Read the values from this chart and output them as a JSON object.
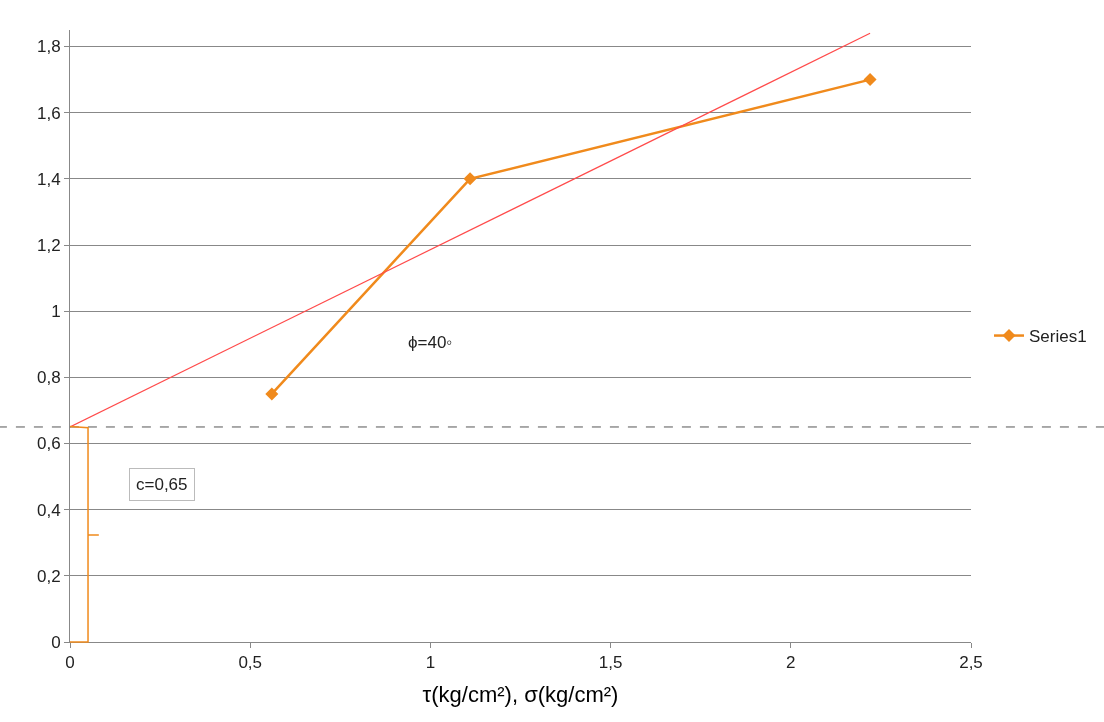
{
  "chart_data": {
    "type": "line",
    "xlabel": "τ(kg/cm²), σ(kg/cm²)",
    "x": [
      0.56,
      1.11,
      2.22
    ],
    "series": [
      {
        "name": "Series1",
        "color": "#f08a1c",
        "values": [
          0.75,
          1.4,
          1.7
        ],
        "marker": "diamond"
      },
      {
        "type": "line",
        "color": "#ff4b4b",
        "x": [
          0,
          2.22
        ],
        "values": [
          0.65,
          1.84
        ],
        "marker": "none"
      }
    ],
    "xlim": [
      0,
      2.5
    ],
    "xticks": [
      0,
      {
        "value": 0.5,
        "label": "0,5"
      },
      1,
      {
        "value": 1.5,
        "label": "1,5"
      },
      2,
      {
        "value": 2.5,
        "label": "2,5"
      }
    ],
    "ylim": [
      0,
      1.85
    ],
    "yticks": [
      0,
      {
        "value": 0.2,
        "label": "0,2"
      },
      {
        "value": 0.4,
        "label": "0,4"
      },
      {
        "value": 0.6,
        "label": "0,6"
      },
      {
        "value": 0.8,
        "label": "0,8"
      },
      1,
      {
        "value": 1.2,
        "label": "1,2"
      },
      {
        "value": 1.4,
        "label": "1,4"
      },
      {
        "value": 1.6,
        "label": "1,6"
      },
      {
        "value": 1.8,
        "label": "1,8"
      }
    ],
    "ref_lines": [
      {
        "axis": "y",
        "value": 0.65,
        "color": "#555555",
        "line_style": "dashed"
      }
    ],
    "annotations": [
      "ϕ=40◦",
      "c=0,65"
    ],
    "grid": "y",
    "legend": "right",
    "line_style": "solid"
  }
}
